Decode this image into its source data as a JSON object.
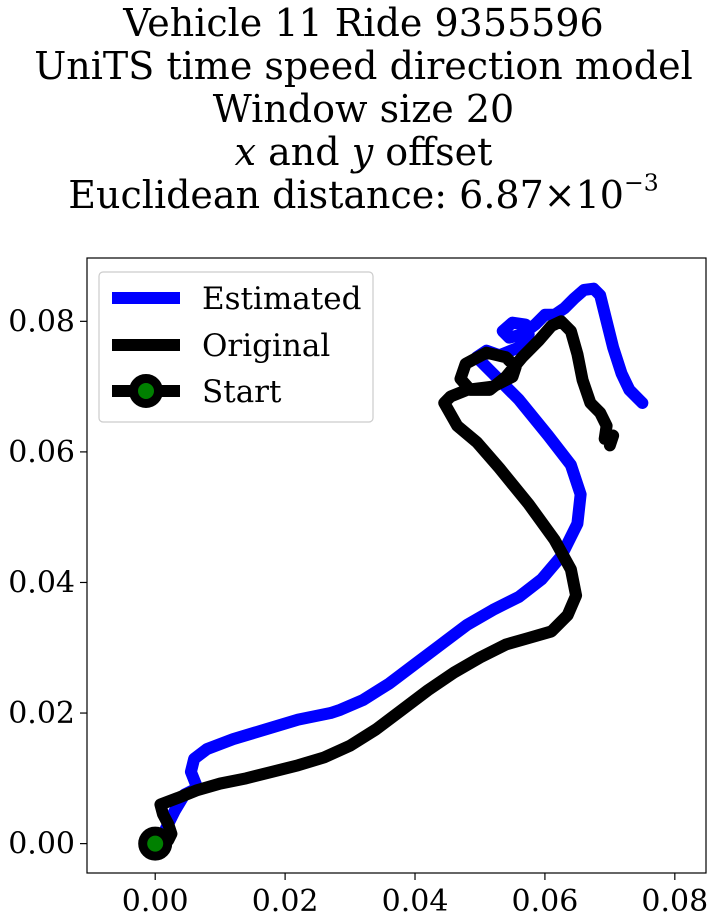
{
  "chart_data": {
    "type": "line",
    "title_lines": [
      "Vehicle 11 Ride 9355596",
      "UniTS time speed direction model",
      "Window size 20"
    ],
    "title_offset_line": {
      "x_var": "x",
      "and_word": "and",
      "y_var": "y",
      "suffix": "offset"
    },
    "title_distance": {
      "prefix": "Euclidean distance: 6.87",
      "times": "×",
      "base": "10",
      "exponent": "−3"
    },
    "xlim": [
      -0.0105,
      0.0848
    ],
    "ylim": [
      -0.0045,
      0.0897
    ],
    "xticks": [
      0.0,
      0.02,
      0.04,
      0.06,
      0.08
    ],
    "xtick_labels": [
      "0.00",
      "0.02",
      "0.04",
      "0.06",
      "0.08"
    ],
    "yticks": [
      0.0,
      0.02,
      0.04,
      0.06,
      0.08
    ],
    "ytick_labels": [
      "0.00",
      "0.02",
      "0.04",
      "0.06",
      "0.08"
    ],
    "grid": false,
    "legend": {
      "position": "top-left",
      "entries": [
        "Estimated",
        "Original",
        "Start"
      ]
    },
    "series": [
      {
        "name": "Estimated",
        "color": "#0000ff",
        "points": [
          [
            0.0,
            0.0
          ],
          [
            0.0015,
            0.002
          ],
          [
            0.003,
            0.005
          ],
          [
            0.0045,
            0.0075
          ],
          [
            0.0065,
            0.0085
          ],
          [
            0.0055,
            0.011
          ],
          [
            0.006,
            0.013
          ],
          [
            0.008,
            0.0145
          ],
          [
            0.012,
            0.016
          ],
          [
            0.017,
            0.0175
          ],
          [
            0.022,
            0.019
          ],
          [
            0.027,
            0.02
          ],
          [
            0.0285,
            0.0205
          ],
          [
            0.032,
            0.022
          ],
          [
            0.036,
            0.0245
          ],
          [
            0.04,
            0.0275
          ],
          [
            0.044,
            0.0305
          ],
          [
            0.048,
            0.0335
          ],
          [
            0.052,
            0.0358
          ],
          [
            0.056,
            0.0378
          ],
          [
            0.0595,
            0.0405
          ],
          [
            0.0625,
            0.044
          ],
          [
            0.065,
            0.049
          ],
          [
            0.0655,
            0.0535
          ],
          [
            0.064,
            0.058
          ],
          [
            0.0605,
            0.0625
          ],
          [
            0.056,
            0.068
          ],
          [
            0.052,
            0.072
          ],
          [
            0.0495,
            0.0745
          ],
          [
            0.051,
            0.0755
          ],
          [
            0.053,
            0.0748
          ],
          [
            0.056,
            0.076
          ],
          [
            0.0575,
            0.078
          ],
          [
            0.057,
            0.0795
          ],
          [
            0.055,
            0.0798
          ],
          [
            0.0535,
            0.0785
          ],
          [
            0.0545,
            0.0775
          ],
          [
            0.0565,
            0.078
          ],
          [
            0.0585,
            0.0795
          ],
          [
            0.06,
            0.081
          ],
          [
            0.0615,
            0.081
          ],
          [
            0.063,
            0.082
          ],
          [
            0.0645,
            0.0835
          ],
          [
            0.066,
            0.0848
          ],
          [
            0.0675,
            0.085
          ],
          [
            0.0685,
            0.084
          ],
          [
            0.0695,
            0.08
          ],
          [
            0.0705,
            0.076
          ],
          [
            0.0718,
            0.072
          ],
          [
            0.073,
            0.0695
          ],
          [
            0.0745,
            0.068
          ],
          [
            0.075,
            0.0675
          ]
        ]
      },
      {
        "name": "Original",
        "color": "#000000",
        "points": [
          [
            0.0,
            0.0
          ],
          [
            0.002,
            0.0005
          ],
          [
            0.0025,
            0.0015
          ],
          [
            0.002,
            0.003
          ],
          [
            0.0012,
            0.0045
          ],
          [
            0.0008,
            0.006
          ],
          [
            0.0035,
            0.007
          ],
          [
            0.0065,
            0.0082
          ],
          [
            0.01,
            0.0092
          ],
          [
            0.014,
            0.01
          ],
          [
            0.018,
            0.011
          ],
          [
            0.022,
            0.012
          ],
          [
            0.026,
            0.0132
          ],
          [
            0.03,
            0.015
          ],
          [
            0.034,
            0.0175
          ],
          [
            0.038,
            0.0205
          ],
          [
            0.042,
            0.0235
          ],
          [
            0.046,
            0.0262
          ],
          [
            0.05,
            0.0285
          ],
          [
            0.054,
            0.0305
          ],
          [
            0.0575,
            0.0315
          ],
          [
            0.061,
            0.0325
          ],
          [
            0.0635,
            0.035
          ],
          [
            0.0648,
            0.038
          ],
          [
            0.064,
            0.042
          ],
          [
            0.0615,
            0.0465
          ],
          [
            0.0575,
            0.052
          ],
          [
            0.053,
            0.0575
          ],
          [
            0.0495,
            0.0615
          ],
          [
            0.0465,
            0.064
          ],
          [
            0.0445,
            0.0675
          ],
          [
            0.0455,
            0.0685
          ],
          [
            0.048,
            0.0695
          ],
          [
            0.052,
            0.07
          ],
          [
            0.055,
            0.0715
          ],
          [
            0.0555,
            0.073
          ],
          [
            0.054,
            0.0745
          ],
          [
            0.051,
            0.0752
          ],
          [
            0.0478,
            0.0735
          ],
          [
            0.047,
            0.0712
          ],
          [
            0.0485,
            0.0695
          ],
          [
            0.0515,
            0.0695
          ],
          [
            0.054,
            0.0715
          ],
          [
            0.0565,
            0.0745
          ],
          [
            0.059,
            0.077
          ],
          [
            0.061,
            0.0793
          ],
          [
            0.0625,
            0.08
          ],
          [
            0.064,
            0.0785
          ],
          [
            0.065,
            0.075
          ],
          [
            0.0658,
            0.071
          ],
          [
            0.067,
            0.0675
          ],
          [
            0.0685,
            0.066
          ],
          [
            0.0695,
            0.064
          ],
          [
            0.0692,
            0.062
          ],
          [
            0.0705,
            0.0625
          ],
          [
            0.07,
            0.061
          ]
        ]
      }
    ],
    "start": {
      "name": "Start",
      "point": [
        0.0,
        0.0
      ],
      "edge_color": "#000000",
      "face_color": "#008000"
    }
  }
}
